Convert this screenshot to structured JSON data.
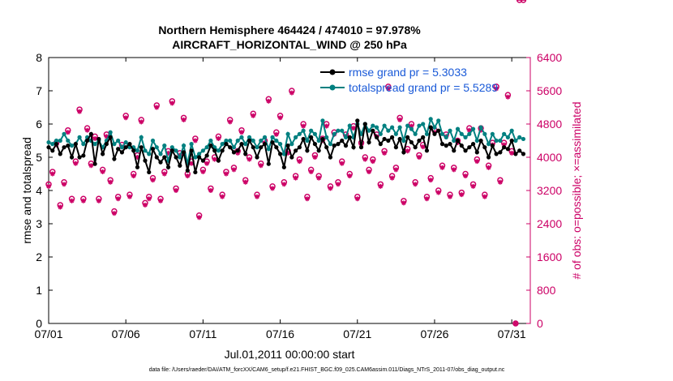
{
  "chart_data": {
    "type": "line",
    "title_line1": "Northern Hemisphere 464424 / 474010 = 97.978%",
    "title_line2": "AIRCRAFT_HORIZONTAL_WIND @ 250 hPa",
    "xlabel": "Jul.01,2011 00:00:00 start",
    "ylabel_left": "rmse and totalspread",
    "ylabel_right": "# of obs: o=possible; ×=assimilated",
    "xlim": [
      1,
      32.2
    ],
    "ylim_left": [
      0,
      8
    ],
    "ylim_right": [
      0,
      6400
    ],
    "x_ticks": [
      {
        "value": 1,
        "label": "07/01"
      },
      {
        "value": 6,
        "label": "07/06"
      },
      {
        "value": 11,
        "label": "07/11"
      },
      {
        "value": 16,
        "label": "07/16"
      },
      {
        "value": 21,
        "label": "07/21"
      },
      {
        "value": 26,
        "label": "07/26"
      },
      {
        "value": 31,
        "label": "07/31"
      }
    ],
    "y_ticks_left": [
      "0",
      "1",
      "2",
      "3",
      "4",
      "5",
      "6",
      "7",
      "8"
    ],
    "y_ticks_right": [
      "0",
      "800",
      "1600",
      "2400",
      "3200",
      "4000",
      "4800",
      "5600",
      "6400"
    ],
    "legend": {
      "position": "top-right",
      "entries": [
        "rmse grand pr = 5.3033",
        "totalspread grand pr = 5.5289"
      ]
    },
    "footer": "data file: /Users/raeder/DAI/ATM_forcXX/CAM6_setup/f.e21.FHIST_BGC.f09_025.CAM6assim.011/Diags_NTrS_2011-07/obs_diag_output.nc",
    "colors": {
      "rmse": "#000000",
      "totalspread": "#008080",
      "obs": "#cc0066",
      "right_axis": "#cc0066"
    },
    "x": [
      1.0,
      1.25,
      1.5,
      1.75,
      2.0,
      2.25,
      2.5,
      2.75,
      3.0,
      3.25,
      3.5,
      3.75,
      4.0,
      4.25,
      4.5,
      4.75,
      5.0,
      5.25,
      5.5,
      5.75,
      6.0,
      6.25,
      6.5,
      6.75,
      7.0,
      7.25,
      7.5,
      7.75,
      8.0,
      8.25,
      8.5,
      8.75,
      9.0,
      9.25,
      9.5,
      9.75,
      10.0,
      10.25,
      10.5,
      10.75,
      11.0,
      11.25,
      11.5,
      11.75,
      12.0,
      12.25,
      12.5,
      12.75,
      13.0,
      13.25,
      13.5,
      13.75,
      14.0,
      14.25,
      14.5,
      14.75,
      15.0,
      15.25,
      15.5,
      15.75,
      16.0,
      16.25,
      16.5,
      16.75,
      17.0,
      17.25,
      17.5,
      17.75,
      18.0,
      18.25,
      18.5,
      18.75,
      19.0,
      19.25,
      19.5,
      19.75,
      20.0,
      20.25,
      20.5,
      20.75,
      21.0,
      21.25,
      21.5,
      21.75,
      22.0,
      22.25,
      22.5,
      22.75,
      23.0,
      23.25,
      23.5,
      23.75,
      24.0,
      24.25,
      24.5,
      24.75,
      25.0,
      25.25,
      25.5,
      25.75,
      26.0,
      26.25,
      26.5,
      26.75,
      27.0,
      27.25,
      27.5,
      27.75,
      28.0,
      28.25,
      28.5,
      28.75,
      29.0,
      29.25,
      29.5,
      29.75,
      30.0,
      30.25,
      30.5,
      30.75,
      31.0,
      31.25,
      31.5,
      31.75
    ],
    "series": [
      {
        "name": "rmse",
        "values": [
          5.3,
          5.2,
          5.4,
          5.1,
          5.3,
          5.35,
          5.0,
          5.4,
          5.0,
          5.05,
          5.5,
          5.7,
          4.8,
          5.55,
          5.1,
          5.4,
          5.6,
          4.95,
          5.25,
          5.15,
          5.3,
          5.4,
          5.2,
          4.7,
          5.3,
          4.9,
          4.55,
          5.25,
          5.0,
          4.85,
          5.0,
          4.7,
          5.2,
          5.0,
          4.75,
          5.15,
          4.6,
          5.2,
          4.55,
          5.0,
          4.9,
          5.05,
          5.35,
          5.2,
          4.9,
          5.2,
          5.4,
          5.3,
          5.15,
          5.2,
          5.4,
          5.1,
          5.5,
          5.3,
          5.0,
          5.3,
          5.4,
          4.8,
          5.45,
          5.3,
          5.1,
          4.7,
          5.35,
          5.0,
          5.2,
          5.3,
          5.55,
          5.2,
          5.6,
          5.4,
          5.2,
          5.55,
          5.3,
          5.0,
          5.35,
          5.4,
          5.5,
          5.35,
          5.6,
          5.3,
          6.1,
          5.3,
          6.0,
          5.45,
          5.8,
          5.6,
          5.4,
          5.55,
          5.5,
          5.6,
          5.3,
          5.55,
          5.15,
          5.6,
          5.45,
          5.3,
          5.5,
          5.6,
          5.2,
          5.9,
          5.7,
          5.8,
          5.4,
          5.35,
          5.4,
          5.2,
          5.5,
          5.35,
          5.2,
          5.3,
          5.4,
          5.15,
          5.5,
          5.3,
          5.0,
          5.35,
          5.1,
          5.15,
          5.3,
          5.25,
          5.5,
          5.1,
          5.2,
          5.1
        ],
        "color": "#000000"
      },
      {
        "name": "totalspread",
        "values": [
          5.45,
          5.4,
          5.5,
          5.5,
          5.7,
          5.5,
          5.35,
          5.4,
          5.6,
          5.4,
          5.6,
          5.5,
          5.4,
          5.5,
          5.3,
          5.5,
          5.75,
          5.4,
          5.5,
          5.3,
          5.45,
          5.3,
          5.3,
          5.2,
          5.6,
          5.2,
          5.1,
          5.5,
          5.3,
          5.1,
          5.35,
          4.9,
          5.3,
          5.2,
          5.0,
          5.35,
          4.8,
          5.4,
          5.0,
          5.1,
          5.2,
          5.3,
          5.5,
          5.3,
          5.2,
          5.4,
          5.5,
          5.5,
          5.3,
          5.5,
          5.6,
          5.4,
          5.6,
          5.5,
          5.3,
          5.5,
          5.6,
          5.25,
          5.6,
          5.5,
          5.4,
          5.1,
          5.7,
          5.4,
          5.6,
          5.7,
          5.8,
          5.5,
          5.8,
          5.7,
          5.5,
          6.1,
          5.6,
          5.4,
          5.7,
          5.8,
          5.8,
          5.6,
          5.95,
          5.6,
          6.0,
          5.7,
          6.0,
          5.8,
          5.95,
          5.9,
          5.7,
          5.95,
          5.8,
          5.9,
          5.7,
          5.9,
          5.5,
          5.95,
          5.85,
          5.7,
          5.95,
          6.0,
          5.7,
          6.15,
          5.9,
          6.1,
          5.7,
          5.6,
          5.8,
          5.5,
          5.85,
          5.7,
          5.6,
          5.7,
          5.85,
          5.5,
          5.9,
          5.7,
          5.4,
          5.7,
          5.5,
          5.5,
          5.7,
          5.6,
          5.8,
          5.5,
          5.6,
          5.55
        ],
        "color": "#008080"
      }
    ],
    "obs_possible": [
      3350,
      3650,
      4350,
      2850,
      3400,
      4650,
      3000,
      3900,
      5150,
      3000,
      4700,
      3850,
      4500,
      3000,
      3700,
      4550,
      3450,
      2700,
      3050,
      4300,
      5000,
      3100,
      3600,
      4050,
      4900,
      2900,
      3050,
      3500,
      5250,
      3000,
      3650,
      4150,
      5350,
      3250,
      4100,
      4950,
      3600,
      3900,
      4450,
      2600,
      3700,
      3900,
      3250,
      4000,
      4500,
      3100,
      3650,
      4900,
      3750,
      4150,
      4650,
      3450,
      4000,
      5050,
      3100,
      3850,
      4400,
      5400,
      3300,
      4600,
      5000,
      3400,
      4150,
      5600,
      3550,
      3950,
      4800,
      3050,
      3700,
      4050,
      3550,
      4450,
      4800,
      3300,
      4600,
      3400,
      3900,
      4550,
      3600,
      4750,
      3050,
      4350,
      4000,
      3700,
      3950,
      4550,
      3350,
      4150,
      5700,
      3550,
      3750,
      4950,
      2950,
      4200,
      4800,
      3400,
      4050,
      4300,
      3050,
      3500,
      4650,
      3200,
      3800,
      4550,
      3100,
      3750,
      4400,
      3150,
      3600,
      4700,
      3350,
      3950,
      4700,
      3100,
      3800,
      4350,
      5700,
      3450,
      4350,
      5500,
      4150,
      0
    ],
    "obs_assimilated": [
      3300,
      3600,
      4300,
      2800,
      3350,
      4600,
      2950,
      3850,
      5100,
      2950,
      4650,
      3800,
      4450,
      2950,
      3650,
      4500,
      3400,
      2650,
      3000,
      4250,
      4950,
      3050,
      3550,
      4000,
      4850,
      2850,
      3000,
      3450,
      5200,
      2950,
      3600,
      4100,
      5300,
      3200,
      4050,
      4900,
      3550,
      3850,
      4400,
      2550,
      3650,
      3850,
      3200,
      3950,
      4450,
      3050,
      3600,
      4850,
      3700,
      4100,
      4600,
      3400,
      3950,
      5000,
      3050,
      3800,
      4350,
      5350,
      3250,
      4550,
      4950,
      3350,
      4100,
      5550,
      3500,
      3900,
      4750,
      3000,
      3650,
      4000,
      3500,
      4400,
      4750,
      3250,
      4550,
      3350,
      3850,
      4500,
      3550,
      4700,
      3000,
      4300,
      3950,
      3650,
      3900,
      4500,
      3300,
      4100,
      5650,
      3500,
      3700,
      4900,
      2900,
      4150,
      4750,
      3350,
      4000,
      4250,
      3000,
      3450,
      4600,
      3150,
      3750,
      4500,
      3050,
      3700,
      4350,
      3100,
      3550,
      4650,
      3300,
      3900,
      4650,
      3050,
      3750,
      4300,
      5650,
      3400,
      4300,
      5450,
      4100,
      0
    ]
  }
}
